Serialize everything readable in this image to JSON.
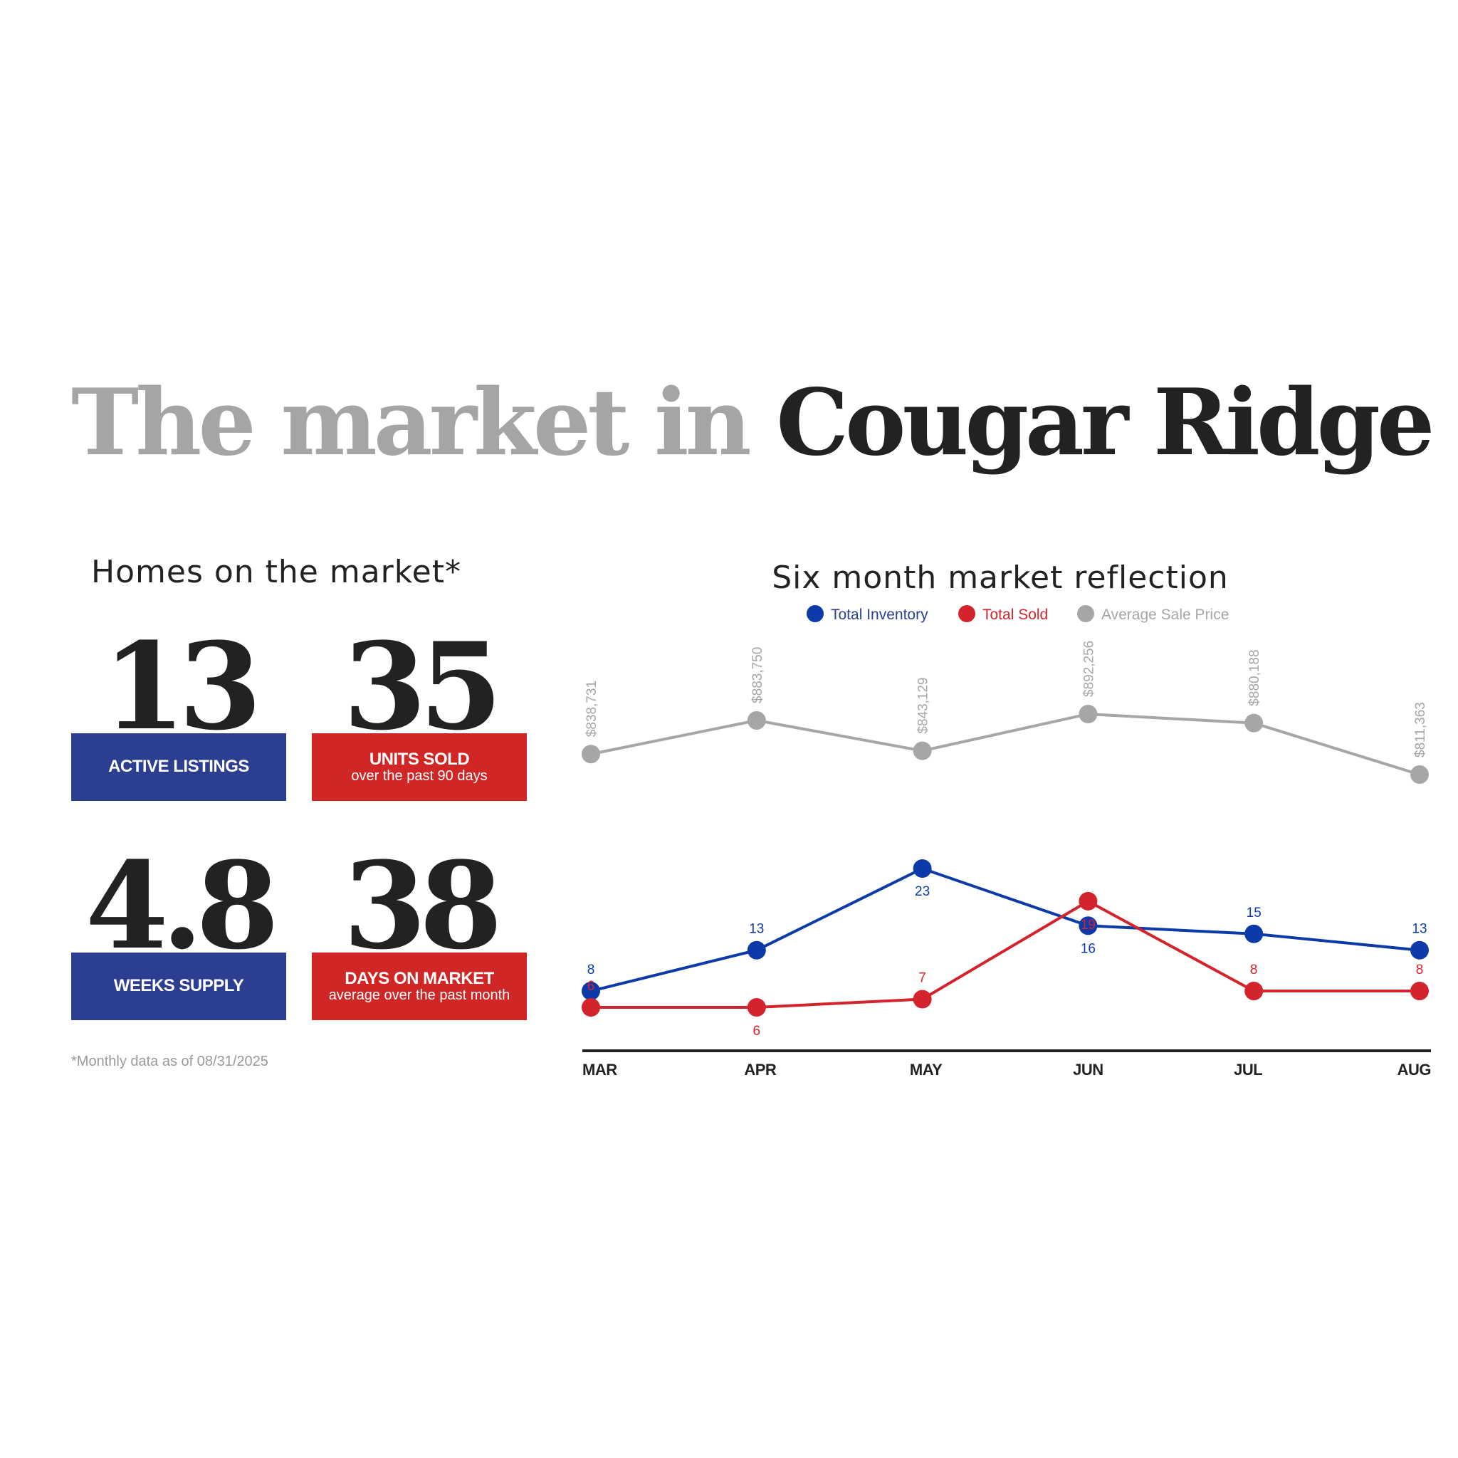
{
  "title": {
    "part1": "The market in",
    "part2": "Cougar Ridge"
  },
  "homes": {
    "heading": "Homes on the market*",
    "stats": [
      {
        "value": "13",
        "label": "ACTIVE LISTINGS",
        "sub": ""
      },
      {
        "value": "35",
        "label": "UNITS SOLD",
        "sub": "over the past 90 days"
      },
      {
        "value": "4.8",
        "label": "WEEKS SUPPLY",
        "sub": ""
      },
      {
        "value": "38",
        "label": "DAYS ON MARKET",
        "sub": "average over the past month"
      }
    ],
    "footnote": "*Monthly data as of 08/31/2025"
  },
  "colors": {
    "blue": "#0c3aa8",
    "red": "#d3232d",
    "gray": "#a6a6a6",
    "box_blue": "#2c3e8f",
    "box_red": "#d02626"
  },
  "chart_data": {
    "type": "line",
    "title": "Six month market reflection",
    "categories": [
      "MAR",
      "APR",
      "MAY",
      "JUN",
      "JUL",
      "AUG"
    ],
    "legend": [
      "Total Inventory",
      "Total Sold",
      "Average Sale Price"
    ],
    "legend_position": "top-center",
    "grid": false,
    "series": [
      {
        "name": "Total Inventory",
        "values": [
          8,
          13,
          23,
          16,
          15,
          13
        ],
        "labels": [
          "8",
          "13",
          "23",
          "16",
          "15",
          "13"
        ]
      },
      {
        "name": "Total Sold",
        "values": [
          6,
          6,
          7,
          19,
          8,
          8
        ],
        "labels": [
          "6",
          "6",
          "7",
          "19",
          "8",
          "8"
        ]
      },
      {
        "name": "Average Sale Price",
        "values": [
          838731,
          883750,
          843129,
          892256,
          880188,
          811363
        ],
        "labels": [
          "$838,731",
          "$883,750",
          "$843,129",
          "$892,256",
          "$880,188",
          "$811,363"
        ]
      }
    ]
  }
}
